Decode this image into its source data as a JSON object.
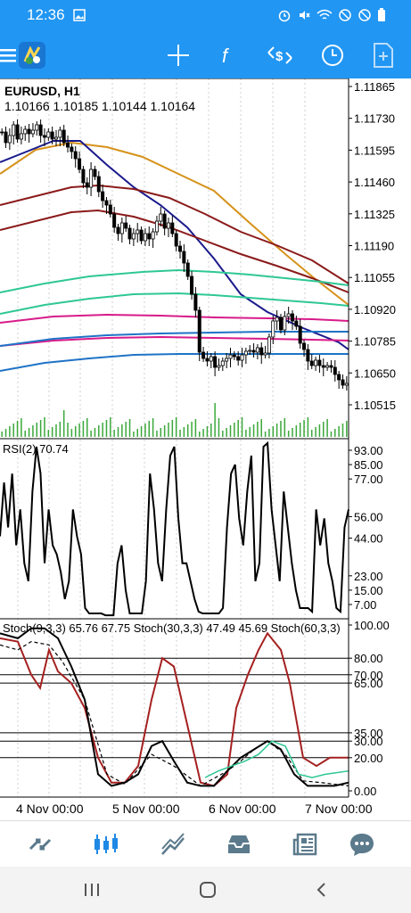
{
  "status_bar": {
    "time": "12:36"
  },
  "chart": {
    "symbol_label": "EURUSD, H1",
    "ohlc": "1.10166 1.10185 1.10144 1.10164",
    "price_ticks": [
      "1.11865",
      "1.11730",
      "1.11595",
      "1.11460",
      "1.11325",
      "1.11190",
      "1.11055",
      "1.10920",
      "1.10785",
      "1.10650",
      "1.10515"
    ],
    "rsi_label": "RSI(2) 70.74",
    "rsi_ticks": [
      "93.00",
      "85.00",
      "77.00",
      "56.00",
      "44.00",
      "23.00",
      "15.00",
      "7.00"
    ],
    "stoch_label": "Stoch(9,3,3) 65.76 67.75 Stoch(30,3,3) 47.49 45.69 Stoch(60,3,3)",
    "stoch_ticks": [
      "100.00",
      "80.00",
      "70.00",
      "65.00",
      "35.00",
      "30.00",
      "20.00",
      "0.00"
    ],
    "time_labels": [
      "4 Nov 00:00",
      "5 Nov 00:00",
      "6 Nov 00:00",
      "7 Nov 00:00"
    ],
    "colors": {
      "accent": "#2196f3",
      "candle": "#000000",
      "volume": "#3aa83a",
      "ma_orange": "#d6921a",
      "ma_navy": "#1a1a8c",
      "ma_darkred": "#8b1a1a",
      "ma_teal": "#2ec795",
      "ma_pink": "#d81b8a",
      "ma_blue": "#1f73c7",
      "stoch_red": "#a52020",
      "stoch_green": "#2ec795"
    }
  },
  "toolbar_icons": [
    "menu-icon",
    "app-logo-icon",
    "crosshair-icon",
    "function-icon",
    "trade-icon",
    "clock-icon",
    "new-chart-icon"
  ],
  "bottom_nav": [
    "quotes",
    "chart",
    "trade",
    "history",
    "news",
    "chat"
  ]
}
